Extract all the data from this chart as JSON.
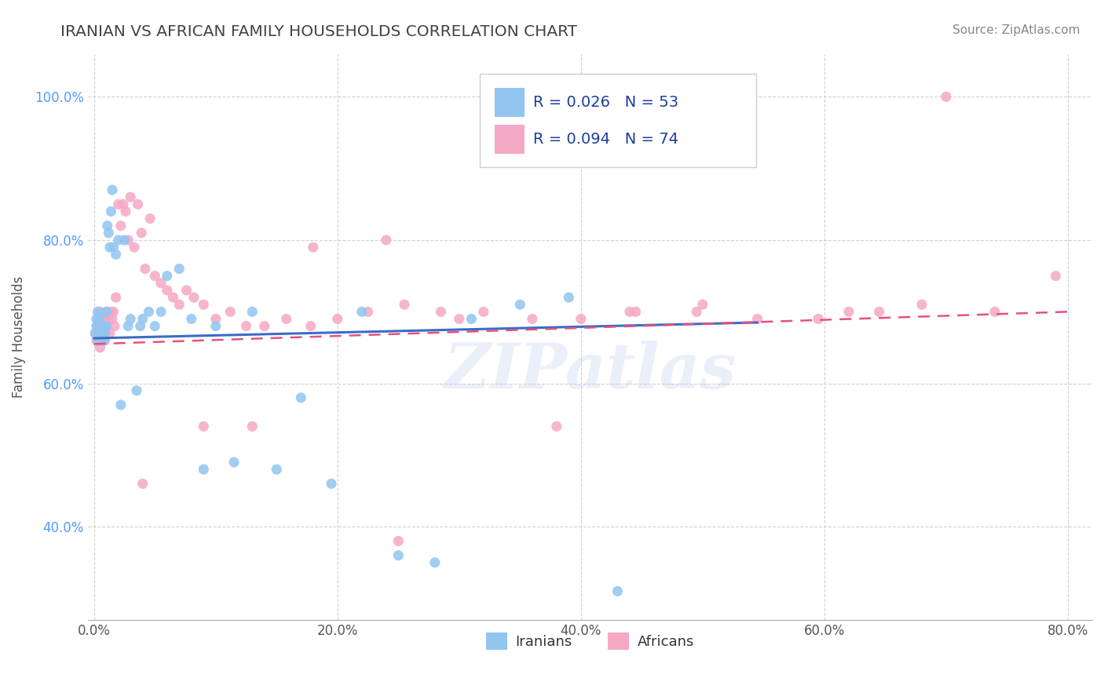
{
  "title": "IRANIAN VS AFRICAN FAMILY HOUSEHOLDS CORRELATION CHART",
  "source_text": "Source: ZipAtlas.com",
  "ylabel": "Family Households",
  "xlim": [
    -0.005,
    0.82
  ],
  "ylim": [
    0.27,
    1.06
  ],
  "x_tick_labels": [
    "0.0%",
    "20.0%",
    "40.0%",
    "60.0%",
    "80.0%"
  ],
  "x_tick_vals": [
    0.0,
    0.2,
    0.4,
    0.6,
    0.8
  ],
  "y_tick_labels": [
    "40.0%",
    "60.0%",
    "80.0%",
    "100.0%"
  ],
  "y_tick_vals": [
    0.4,
    0.6,
    0.8,
    1.0
  ],
  "legend_r_iranian": "R = 0.026",
  "legend_n_iranian": "N = 53",
  "legend_r_african": "R = 0.094",
  "legend_n_african": "N = 74",
  "color_iranian": "#92C5F0",
  "color_african": "#F5A8C5",
  "trendline_color_iranian": "#3A6CC8",
  "trendline_color_african": "#E8507A",
  "background_color": "#FFFFFF",
  "grid_color": "#CCCCCC",
  "title_color": "#444444",
  "watermark_text": "ZIPatlas",
  "iranians_x": [
    0.001,
    0.002,
    0.002,
    0.003,
    0.003,
    0.004,
    0.004,
    0.005,
    0.005,
    0.006,
    0.006,
    0.007,
    0.007,
    0.008,
    0.008,
    0.009,
    0.01,
    0.01,
    0.011,
    0.012,
    0.013,
    0.014,
    0.015,
    0.016,
    0.018,
    0.02,
    0.022,
    0.025,
    0.028,
    0.03,
    0.035,
    0.038,
    0.04,
    0.045,
    0.05,
    0.055,
    0.06,
    0.07,
    0.08,
    0.09,
    0.1,
    0.115,
    0.13,
    0.15,
    0.17,
    0.195,
    0.22,
    0.25,
    0.28,
    0.31,
    0.35,
    0.39,
    0.43
  ],
  "iranians_y": [
    0.67,
    0.68,
    0.69,
    0.66,
    0.7,
    0.665,
    0.685,
    0.67,
    0.695,
    0.66,
    0.68,
    0.67,
    0.665,
    0.68,
    0.66,
    0.67,
    0.68,
    0.7,
    0.82,
    0.81,
    0.79,
    0.84,
    0.87,
    0.79,
    0.78,
    0.8,
    0.57,
    0.8,
    0.68,
    0.69,
    0.59,
    0.68,
    0.69,
    0.7,
    0.68,
    0.7,
    0.75,
    0.76,
    0.69,
    0.48,
    0.68,
    0.49,
    0.7,
    0.48,
    0.58,
    0.46,
    0.7,
    0.36,
    0.35,
    0.69,
    0.71,
    0.72,
    0.31
  ],
  "africans_x": [
    0.001,
    0.002,
    0.003,
    0.004,
    0.005,
    0.005,
    0.006,
    0.006,
    0.007,
    0.007,
    0.008,
    0.008,
    0.009,
    0.01,
    0.011,
    0.012,
    0.013,
    0.014,
    0.015,
    0.016,
    0.017,
    0.018,
    0.02,
    0.022,
    0.024,
    0.026,
    0.028,
    0.03,
    0.033,
    0.036,
    0.039,
    0.042,
    0.046,
    0.05,
    0.055,
    0.06,
    0.065,
    0.07,
    0.076,
    0.082,
    0.09,
    0.1,
    0.112,
    0.125,
    0.14,
    0.158,
    0.178,
    0.2,
    0.225,
    0.255,
    0.285,
    0.32,
    0.36,
    0.4,
    0.445,
    0.495,
    0.545,
    0.595,
    0.645,
    0.7,
    0.18,
    0.24,
    0.3,
    0.38,
    0.44,
    0.5,
    0.62,
    0.68,
    0.74,
    0.79,
    0.04,
    0.09,
    0.13,
    0.25
  ],
  "africans_y": [
    0.67,
    0.66,
    0.68,
    0.69,
    0.65,
    0.7,
    0.66,
    0.685,
    0.665,
    0.68,
    0.67,
    0.69,
    0.66,
    0.68,
    0.7,
    0.69,
    0.67,
    0.7,
    0.69,
    0.7,
    0.68,
    0.72,
    0.85,
    0.82,
    0.85,
    0.84,
    0.8,
    0.86,
    0.79,
    0.85,
    0.81,
    0.76,
    0.83,
    0.75,
    0.74,
    0.73,
    0.72,
    0.71,
    0.73,
    0.72,
    0.71,
    0.69,
    0.7,
    0.68,
    0.68,
    0.69,
    0.68,
    0.69,
    0.7,
    0.71,
    0.7,
    0.7,
    0.69,
    0.69,
    0.7,
    0.7,
    0.69,
    0.69,
    0.7,
    1.0,
    0.79,
    0.8,
    0.69,
    0.54,
    0.7,
    0.71,
    0.7,
    0.71,
    0.7,
    0.75,
    0.46,
    0.54,
    0.54,
    0.38
  ],
  "trendline_iran_x0": 0.0,
  "trendline_iran_x1": 0.545,
  "trendline_iran_y0": 0.663,
  "trendline_iran_y1": 0.685,
  "trendline_afr_x0": 0.0,
  "trendline_afr_x1": 0.8,
  "trendline_afr_y0": 0.655,
  "trendline_afr_y1": 0.7
}
